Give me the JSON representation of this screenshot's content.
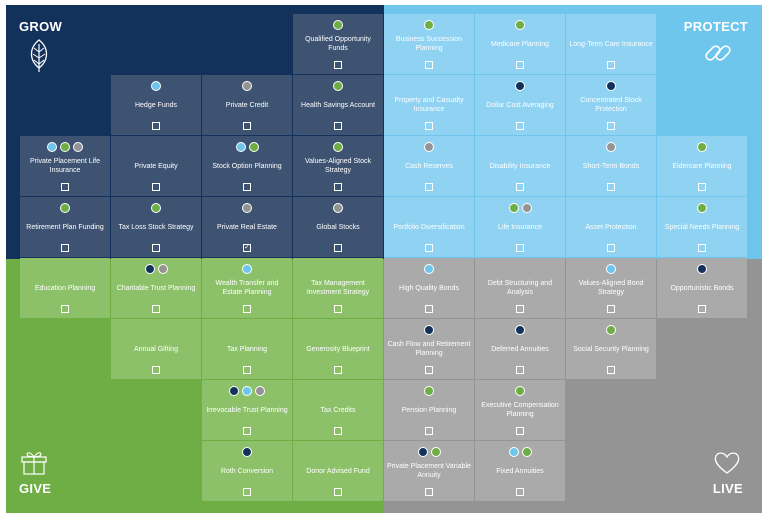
{
  "colors": {
    "grow": "#13325b",
    "protect": "#6ec6ec",
    "give": "#6fae45",
    "live": "#949494",
    "dot_navy": "#13325b",
    "dot_light_blue": "#6ec6ec",
    "dot_green": "#6fae45",
    "dot_gray": "#949494"
  },
  "quadrants": {
    "grow": {
      "label": "GROW",
      "icon": "leaf-icon"
    },
    "protect": {
      "label": "PROTECT",
      "icon": "chain-link-icon"
    },
    "give": {
      "label": "GIVE",
      "icon": "gift-icon"
    },
    "live": {
      "label": "LIVE",
      "icon": "heart-icon"
    }
  },
  "tiles": [
    {
      "label": "Qualified Opportunity Funds",
      "quadrant": "grow",
      "row": 0,
      "col": 3,
      "dots": [
        "green"
      ],
      "checked": false
    },
    {
      "label": "Business Succession Planning",
      "quadrant": "protect",
      "row": 0,
      "col": 4,
      "dots": [
        "green"
      ],
      "checked": false
    },
    {
      "label": "Medicare Planning",
      "quadrant": "protect",
      "row": 0,
      "col": 5,
      "dots": [
        "green"
      ],
      "checked": false
    },
    {
      "label": "Long-Term Care Insurance",
      "quadrant": "protect",
      "row": 0,
      "col": 6,
      "dots": [],
      "checked": false
    },
    {
      "label": "Hedge Funds",
      "quadrant": "grow",
      "row": 1,
      "col": 1,
      "dots": [
        "light_blue"
      ],
      "checked": false
    },
    {
      "label": "Private Credit",
      "quadrant": "grow",
      "row": 1,
      "col": 2,
      "dots": [
        "gray"
      ],
      "checked": false
    },
    {
      "label": "Health Savings Account",
      "quadrant": "grow",
      "row": 1,
      "col": 3,
      "dots": [
        "green"
      ],
      "checked": false
    },
    {
      "label": "Property and Casualty Insurance",
      "quadrant": "protect",
      "row": 1,
      "col": 4,
      "dots": [],
      "checked": false
    },
    {
      "label": "Dollar Cost Averaging",
      "quadrant": "protect",
      "row": 1,
      "col": 5,
      "dots": [
        "navy"
      ],
      "checked": false
    },
    {
      "label": "Concentrated Stock Protection",
      "quadrant": "protect",
      "row": 1,
      "col": 6,
      "dots": [
        "navy"
      ],
      "checked": false
    },
    {
      "label": "Private Placement Life Insurance",
      "quadrant": "grow",
      "row": 2,
      "col": 0,
      "dots": [
        "light_blue",
        "green",
        "gray"
      ],
      "checked": false
    },
    {
      "label": "Private Equity",
      "quadrant": "grow",
      "row": 2,
      "col": 1,
      "dots": [],
      "checked": false
    },
    {
      "label": "Stock Option Planning",
      "quadrant": "grow",
      "row": 2,
      "col": 2,
      "dots": [
        "light_blue",
        "green"
      ],
      "checked": false
    },
    {
      "label": "Values-Aligned Stock Strategy",
      "quadrant": "grow",
      "row": 2,
      "col": 3,
      "dots": [
        "green"
      ],
      "checked": false
    },
    {
      "label": "Cash Reserves",
      "quadrant": "protect",
      "row": 2,
      "col": 4,
      "dots": [
        "gray"
      ],
      "checked": false
    },
    {
      "label": "Disability Insurance",
      "quadrant": "protect",
      "row": 2,
      "col": 5,
      "dots": [],
      "checked": false
    },
    {
      "label": "Short-Term Bonds",
      "quadrant": "protect",
      "row": 2,
      "col": 6,
      "dots": [
        "gray"
      ],
      "checked": false
    },
    {
      "label": "Eldercare Planning",
      "quadrant": "protect",
      "row": 2,
      "col": 7,
      "dots": [
        "green"
      ],
      "checked": false
    },
    {
      "label": "Retirement Plan Funding",
      "quadrant": "grow",
      "row": 3,
      "col": 0,
      "dots": [
        "green"
      ],
      "checked": false
    },
    {
      "label": "Tax Loss Stock Strategy",
      "quadrant": "grow",
      "row": 3,
      "col": 1,
      "dots": [
        "green"
      ],
      "checked": false
    },
    {
      "label": "Private Real Estate",
      "quadrant": "grow",
      "row": 3,
      "col": 2,
      "dots": [
        "gray"
      ],
      "checked": true
    },
    {
      "label": "Global Stocks",
      "quadrant": "grow",
      "row": 3,
      "col": 3,
      "dots": [
        "gray"
      ],
      "checked": false
    },
    {
      "label": "Portfolio Diversification",
      "quadrant": "protect",
      "row": 3,
      "col": 4,
      "dots": [],
      "checked": false
    },
    {
      "label": "Life Insurance",
      "quadrant": "protect",
      "row": 3,
      "col": 5,
      "dots": [
        "green",
        "gray"
      ],
      "checked": false
    },
    {
      "label": "Asset Protection",
      "quadrant": "protect",
      "row": 3,
      "col": 6,
      "dots": [],
      "checked": false
    },
    {
      "label": "Special Needs Planning",
      "quadrant": "protect",
      "row": 3,
      "col": 7,
      "dots": [
        "green"
      ],
      "checked": false
    },
    {
      "label": "Education Planning",
      "quadrant": "give",
      "row": 4,
      "col": 0,
      "dots": [],
      "checked": false
    },
    {
      "label": "Charitable Trust Planning",
      "quadrant": "give",
      "row": 4,
      "col": 1,
      "dots": [
        "navy",
        "gray"
      ],
      "checked": false
    },
    {
      "label": "Wealth Transfer and Estate Planning",
      "quadrant": "give",
      "row": 4,
      "col": 2,
      "dots": [
        "light_blue"
      ],
      "checked": false
    },
    {
      "label": "Tax Management Investment Strategy",
      "quadrant": "give",
      "row": 4,
      "col": 3,
      "dots": [],
      "checked": false
    },
    {
      "label": "High Quality Bonds",
      "quadrant": "live",
      "row": 4,
      "col": 4,
      "dots": [
        "light_blue"
      ],
      "checked": false
    },
    {
      "label": "Debt Structuring and Analysis",
      "quadrant": "live",
      "row": 4,
      "col": 5,
      "dots": [],
      "checked": false
    },
    {
      "label": "Values-Aligned Bond Strategy",
      "quadrant": "live",
      "row": 4,
      "col": 6,
      "dots": [
        "light_blue"
      ],
      "checked": false
    },
    {
      "label": "Opportunistic Bonds",
      "quadrant": "live",
      "row": 4,
      "col": 7,
      "dots": [
        "navy"
      ],
      "checked": false
    },
    {
      "label": "Annual Gifting",
      "quadrant": "give",
      "row": 5,
      "col": 1,
      "dots": [],
      "checked": false
    },
    {
      "label": "Tax Planning",
      "quadrant": "give",
      "row": 5,
      "col": 2,
      "dots": [],
      "checked": false
    },
    {
      "label": "Generosity Blueprint",
      "quadrant": "give",
      "row": 5,
      "col": 3,
      "dots": [],
      "checked": false
    },
    {
      "label": "Cash Flow and Retirement Planning",
      "quadrant": "live",
      "row": 5,
      "col": 4,
      "dots": [
        "navy"
      ],
      "checked": false
    },
    {
      "label": "Deferred Annuities",
      "quadrant": "live",
      "row": 5,
      "col": 5,
      "dots": [
        "navy"
      ],
      "checked": false
    },
    {
      "label": "Social Security Planning",
      "quadrant": "live",
      "row": 5,
      "col": 6,
      "dots": [
        "green"
      ],
      "checked": false
    },
    {
      "label": "Irrevocable Trust Planning",
      "quadrant": "give",
      "row": 6,
      "col": 2,
      "dots": [
        "navy",
        "light_blue",
        "gray"
      ],
      "checked": false
    },
    {
      "label": "Tax Credits",
      "quadrant": "give",
      "row": 6,
      "col": 3,
      "dots": [],
      "checked": false
    },
    {
      "label": "Pension Planning",
      "quadrant": "live",
      "row": 6,
      "col": 4,
      "dots": [
        "green"
      ],
      "checked": false
    },
    {
      "label": "Executive Compensation Planning",
      "quadrant": "live",
      "row": 6,
      "col": 5,
      "dots": [
        "green"
      ],
      "checked": false
    },
    {
      "label": "Roth Conversion",
      "quadrant": "give",
      "row": 7,
      "col": 2,
      "dots": [
        "navy"
      ],
      "checked": false
    },
    {
      "label": "Donor Advised Fund",
      "quadrant": "give",
      "row": 7,
      "col": 3,
      "dots": [],
      "checked": false
    },
    {
      "label": "Private Placement Variable Annuity",
      "quadrant": "live",
      "row": 7,
      "col": 4,
      "dots": [
        "navy",
        "green"
      ],
      "checked": false
    },
    {
      "label": "Fixed Annuities",
      "quadrant": "live",
      "row": 7,
      "col": 5,
      "dots": [
        "light_blue",
        "green"
      ],
      "checked": false
    }
  ]
}
